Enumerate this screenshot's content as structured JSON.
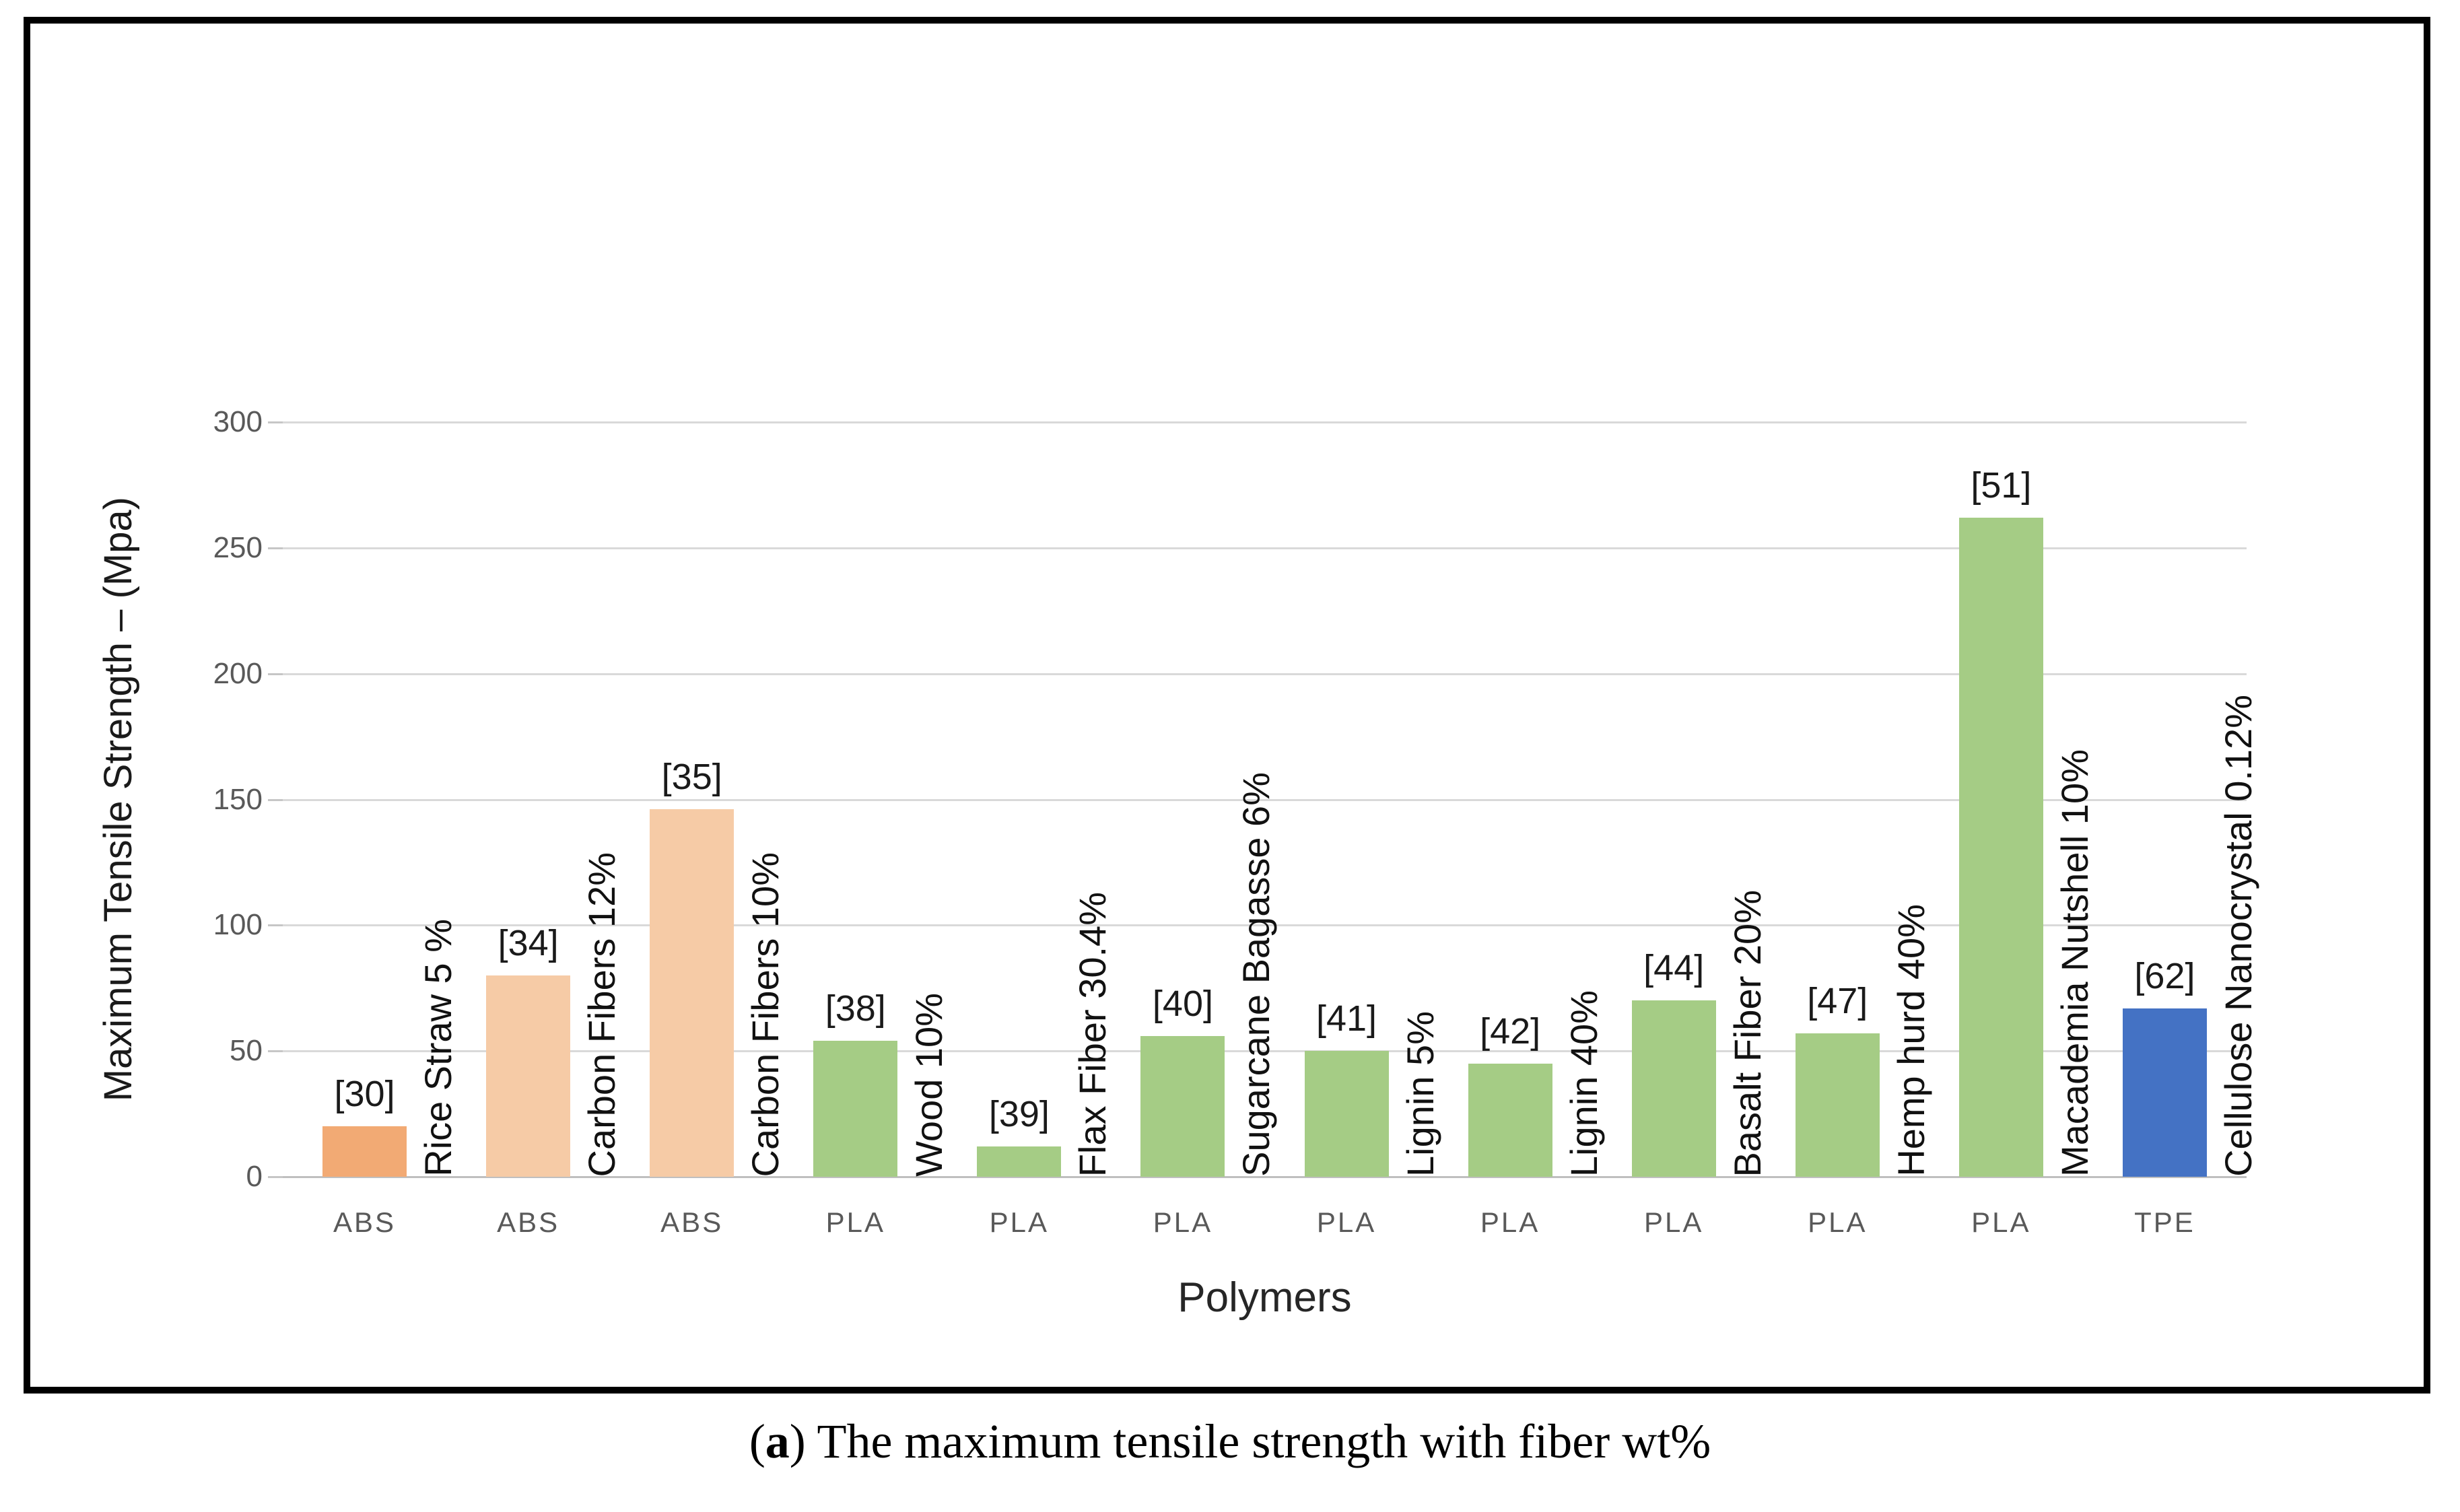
{
  "figure": {
    "caption": {
      "open": "(",
      "letter": "a",
      "rest": ") The maximum tensile strength with fiber wt%"
    }
  },
  "chart_data": {
    "type": "bar",
    "title": "",
    "xlabel": "Polymers",
    "ylabel": "Maximum Tensile Strength – (Mpa)",
    "ylim": [
      0,
      300
    ],
    "yticks": [
      0,
      50,
      100,
      150,
      200,
      250,
      300
    ],
    "grid": "horizontal",
    "legend": "none",
    "categories": [
      "ABS",
      "ABS",
      "ABS",
      "PLA",
      "PLA",
      "PLA",
      "PLA",
      "PLA",
      "PLA",
      "PLA",
      "PLA",
      "TPE"
    ],
    "bars": [
      {
        "polymer": "ABS",
        "ref": "[30]",
        "fiber": "Rice Straw 5 %",
        "value": 20,
        "color": "#f2aa74"
      },
      {
        "polymer": "ABS",
        "ref": "[34]",
        "fiber": "Carbon Fibers 12%",
        "value": 80,
        "color": "#f6cba6"
      },
      {
        "polymer": "ABS",
        "ref": "[35]",
        "fiber": "Carbon Fibers 10%",
        "value": 146,
        "color": "#f6cba6"
      },
      {
        "polymer": "PLA",
        "ref": "[38]",
        "fiber": "Wood 10%",
        "value": 54,
        "color": "#a5cc85"
      },
      {
        "polymer": "PLA",
        "ref": "[39]",
        "fiber": "Flax Fiber 30.4%",
        "value": 12,
        "color": "#a5cc85"
      },
      {
        "polymer": "PLA",
        "ref": "[40]",
        "fiber": "Sugarcane Bagasse 6%",
        "value": 56,
        "color": "#a5cc85"
      },
      {
        "polymer": "PLA",
        "ref": "[41]",
        "fiber": "Lignin 5%",
        "value": 50,
        "color": "#a5cc85"
      },
      {
        "polymer": "PLA",
        "ref": "[42]",
        "fiber": "Lignin 40%",
        "value": 45,
        "color": "#a5cc85"
      },
      {
        "polymer": "PLA",
        "ref": "[44]",
        "fiber": "Basalt Fiber 20%",
        "value": 70,
        "color": "#a5cc85"
      },
      {
        "polymer": "PLA",
        "ref": "[47]",
        "fiber": "Hemp hurd 40%",
        "value": 57,
        "color": "#a5cc85"
      },
      {
        "polymer": "PLA",
        "ref": "[51]",
        "fiber": "Macademia Nutshell 10%",
        "value": 262,
        "color": "#a5cc85"
      },
      {
        "polymer": "TPE",
        "ref": "[62]",
        "fiber": "Cellulose Nanocrystal 0.12%",
        "value": 67,
        "color": "#4472c4"
      }
    ],
    "colors": {
      "gridline": "#d9d9d9",
      "axis_line": "#bfbfbf",
      "tick_text": "#595959",
      "label_text": "#1a1a1a",
      "abs_dark_orange": "#f2aa74",
      "abs_light_orange": "#f6cba6",
      "pla_green": "#a5cc85",
      "tpe_blue": "#4472c4"
    }
  }
}
